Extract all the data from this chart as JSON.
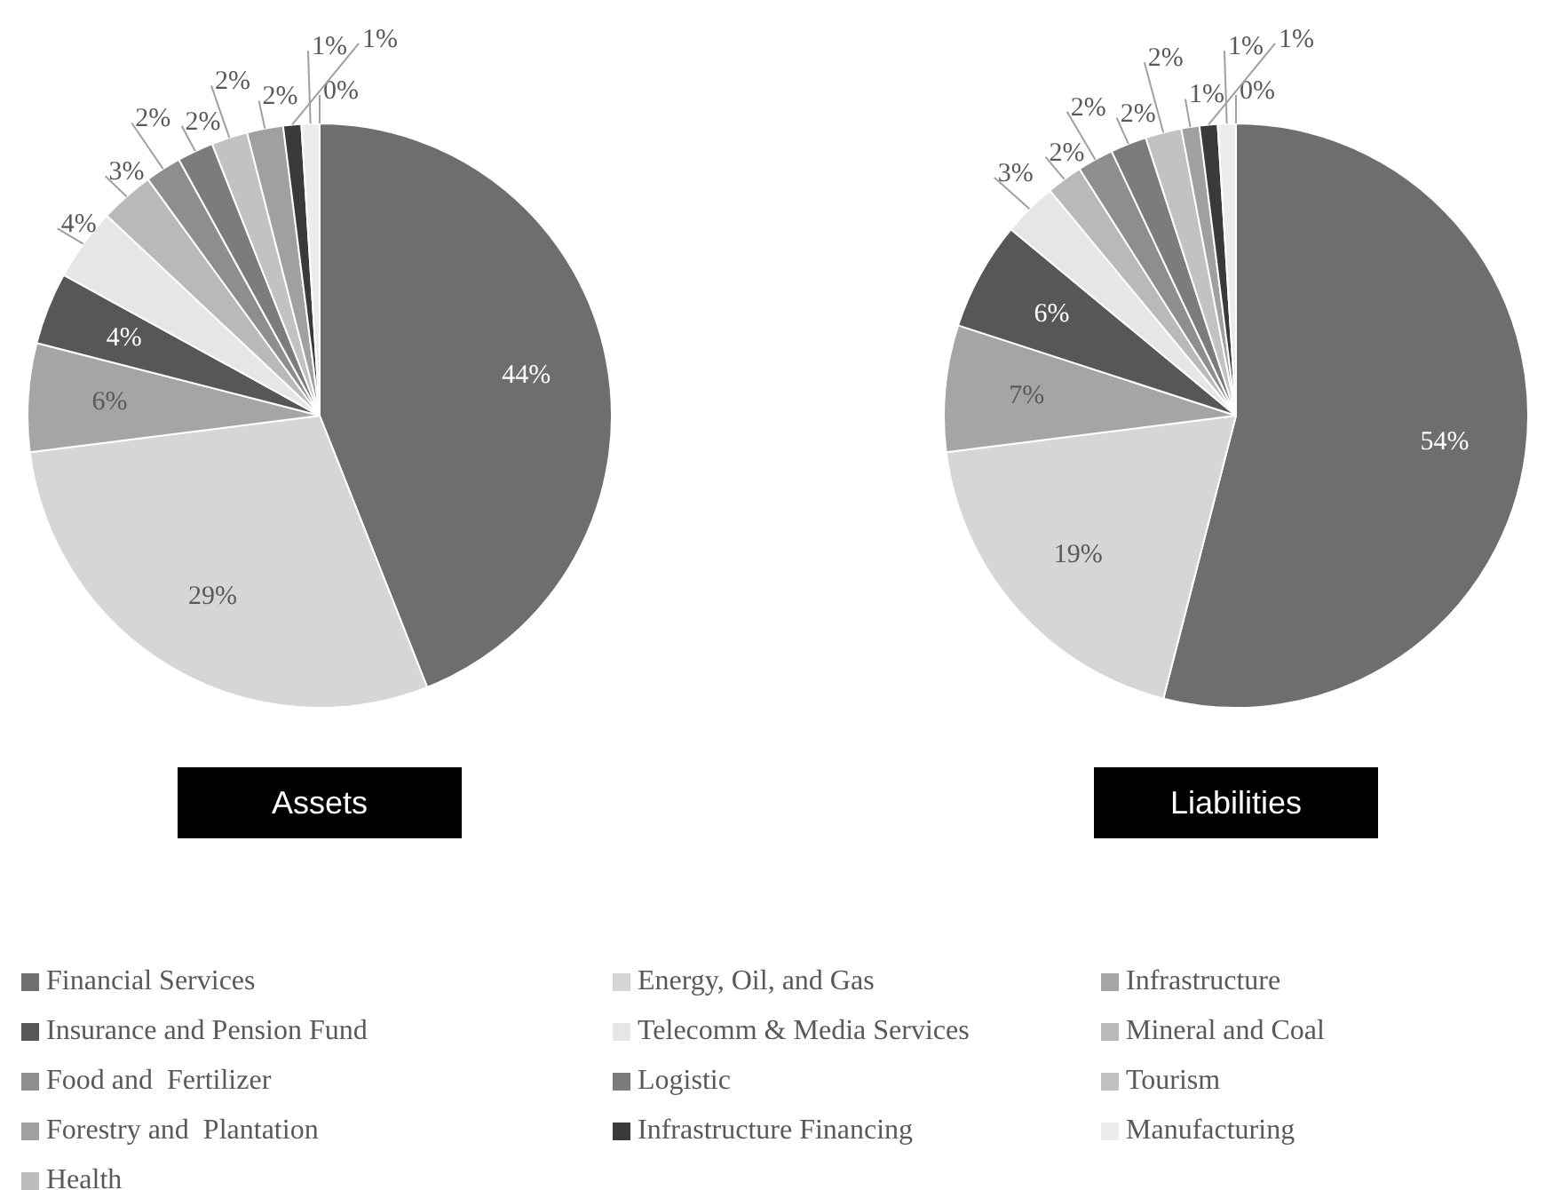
{
  "chart_data": [
    {
      "type": "pie",
      "title": "Assets",
      "categories": [
        "Financial Services",
        "Energy, Oil, and Gas",
        "Infrastructure",
        "Insurance and Pension Fund",
        "Telecomm & Media Services",
        "Mineral and Coal",
        "Food and  Fertilizer",
        "Logistic",
        "Tourism",
        "Forestry and  Plantation",
        "Infrastructure Financing",
        "Manufacturing",
        "Health"
      ],
      "values": [
        44,
        29,
        6,
        4,
        4,
        3,
        2,
        2,
        2,
        2,
        1,
        1,
        0
      ],
      "value_labels": [
        "44%",
        "29%",
        "6%",
        "4%",
        "4%",
        "3%",
        "2%",
        "2%",
        "2%",
        "2%",
        "1%",
        "1%",
        "0%"
      ],
      "colors": [
        "#6e6e6e",
        "#d6d6d6",
        "#a5a5a5",
        "#575757",
        "#e6e6e6",
        "#b9b9b9",
        "#8e8e8e",
        "#7c7c7c",
        "#c2c2c2",
        "#a0a0a0",
        "#3a3a3a",
        "#ececec",
        "#bdbdbd"
      ],
      "legend": "bottom"
    },
    {
      "type": "pie",
      "title": "Liabilities",
      "categories": [
        null,
        null,
        null,
        null,
        null,
        null,
        null,
        null,
        null,
        null,
        null,
        null,
        null
      ],
      "values": [
        54,
        19,
        7,
        6,
        3,
        2,
        2,
        2,
        2,
        1,
        1,
        1,
        0
      ],
      "value_labels": [
        "54%",
        "19%",
        "7%",
        "6%",
        "3%",
        "2%",
        "2%",
        "2%",
        "2%",
        "1%",
        "1%",
        "1%",
        "0%"
      ],
      "colors": [
        "#6e6e6e",
        "#d6d6d6",
        "#a5a5a5",
        "#575757",
        "#e6e6e6",
        "#b9b9b9",
        "#8e8e8e",
        "#7c7c7c",
        "#c2c2c2",
        "#a0a0a0",
        "#3a3a3a",
        "#ececec",
        "#bdbdbd"
      ]
    }
  ]
}
